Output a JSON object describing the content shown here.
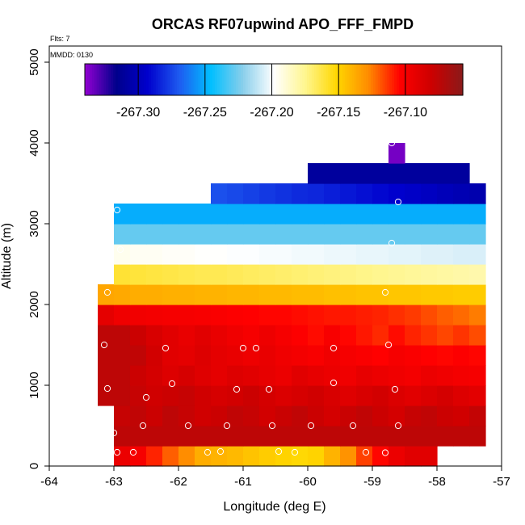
{
  "chart_data": {
    "type": "heatmap",
    "title": "ORCAS RF07upwind APO_FFF_FMPD",
    "flights_note": "Flts: 7",
    "date_note": "MMDD: 0130",
    "xlabel": "Longitude (deg E)",
    "ylabel": "Altitude (m)",
    "xlim": [
      -64,
      -57
    ],
    "ylim": [
      0,
      5200
    ],
    "xticks": [
      -64,
      -63,
      -62,
      -61,
      -60,
      -59,
      -58,
      -57
    ],
    "yticks": [
      0,
      1000,
      2000,
      3000,
      4000,
      5000
    ],
    "grid": false,
    "colorbar": {
      "range": [
        -267.34,
        -267.057
      ],
      "ticks": [
        -267.3,
        -267.25,
        -267.2,
        -267.15,
        -267.1
      ],
      "tick_labels": [
        "-267.30",
        "-267.25",
        "-267.20",
        "-267.15",
        "-267.10"
      ],
      "colors": [
        "#9400d3",
        "#00008b",
        "#0000cd",
        "#1e5bf0",
        "#00bfff",
        "#87ceeb",
        "#ffffff",
        "#fff68f",
        "#ffd700",
        "#ff8c00",
        "#ff0000",
        "#cd0000",
        "#8b1a1a"
      ],
      "placement": "top"
    },
    "cell_width_deg": 0.25,
    "cell_height_m": 250,
    "rows": [
      {
        "alt": 125,
        "lon_start": -63.0,
        "values": [
          -267.095,
          -267.1,
          -267.11,
          -267.12,
          -267.128,
          -267.138,
          -267.14,
          -267.142,
          -267.145,
          -267.148,
          -267.15,
          -267.152,
          -267.15,
          -267.14,
          -267.13,
          -267.115,
          -267.105,
          -267.095,
          -267.09,
          -267.09
        ]
      },
      {
        "alt": 375,
        "lon_start": -63.0,
        "values": [
          -267.075,
          -267.075,
          -267.075,
          -267.075,
          -267.075,
          -267.075,
          -267.075,
          -267.075,
          -267.075,
          -267.075,
          -267.075,
          -267.075,
          -267.075,
          -267.075,
          -267.075,
          -267.075,
          -267.075,
          -267.075,
          -267.075,
          -267.075,
          -267.075,
          -267.075,
          -267.075
        ]
      },
      {
        "alt": 625,
        "lon_start": -63.0,
        "values": [
          -267.078,
          -267.076,
          -267.08,
          -267.075,
          -267.078,
          -267.082,
          -267.08,
          -267.076,
          -267.078,
          -267.083,
          -267.079,
          -267.076,
          -267.08,
          -267.084,
          -267.079,
          -267.076,
          -267.08,
          -267.084,
          -267.078,
          -267.076,
          -267.08,
          -267.082,
          -267.077
        ]
      },
      {
        "alt": 875,
        "lon_start": -63.25,
        "values": [
          -267.075,
          -267.075,
          -267.078,
          -267.082,
          -267.08,
          -267.078,
          -267.082,
          -267.085,
          -267.083,
          -267.08,
          -267.084,
          -267.087,
          -267.085,
          -267.082,
          -267.086,
          -267.089,
          -267.086,
          -267.083,
          -267.087,
          -267.09,
          -267.087,
          -267.084,
          -267.088,
          -267.091
        ]
      },
      {
        "alt": 1125,
        "lon_start": -63.25,
        "values": [
          -267.075,
          -267.075,
          -267.08,
          -267.084,
          -267.088,
          -267.085,
          -267.089,
          -267.092,
          -267.088,
          -267.09,
          -267.093,
          -267.095,
          -267.09,
          -267.093,
          -267.095,
          -267.097,
          -267.093,
          -267.095,
          -267.097,
          -267.099,
          -267.095,
          -267.097,
          -267.099,
          -267.1
        ]
      },
      {
        "alt": 1375,
        "lon_start": -63.25,
        "values": [
          -267.075,
          -267.075,
          -267.076,
          -267.083,
          -267.09,
          -267.092,
          -267.088,
          -267.092,
          -267.094,
          -267.096,
          -267.094,
          -267.097,
          -267.099,
          -267.101,
          -267.097,
          -267.1,
          -267.102,
          -267.104,
          -267.1,
          -267.102,
          -267.104,
          -267.105,
          -267.103,
          -267.105
        ]
      },
      {
        "alt": 1625,
        "lon_start": -63.25,
        "values": [
          -267.075,
          -267.075,
          -267.08,
          -267.086,
          -267.09,
          -267.094,
          -267.09,
          -267.094,
          -267.097,
          -267.1,
          -267.096,
          -267.1,
          -267.103,
          -267.106,
          -267.101,
          -267.105,
          -267.108,
          -267.111,
          -267.106,
          -267.11,
          -267.113,
          -267.116,
          -267.113,
          -267.117
        ]
      },
      {
        "alt": 1875,
        "lon_start": -63.25,
        "values": [
          -267.092,
          -267.097,
          -267.098,
          -267.099,
          -267.1,
          -267.1,
          -267.101,
          -267.102,
          -267.103,
          -267.104,
          -267.105,
          -267.105,
          -267.106,
          -267.107,
          -267.108,
          -267.108,
          -267.109,
          -267.11,
          -267.112,
          -267.114,
          -267.117,
          -267.12,
          -267.122,
          -267.125
        ]
      },
      {
        "alt": 2125,
        "lon_start": -63.25,
        "values": [
          -267.136,
          -267.137,
          -267.138,
          -267.138,
          -267.139,
          -267.139,
          -267.14,
          -267.14,
          -267.141,
          -267.141,
          -267.142,
          -267.142,
          -267.143,
          -267.143,
          -267.144,
          -267.144,
          -267.145,
          -267.145,
          -267.146,
          -267.146,
          -267.147,
          -267.147,
          -267.148,
          -267.148
        ]
      },
      {
        "alt": 2375,
        "lon_start": -63.0,
        "values": [
          -267.16,
          -267.161,
          -267.162,
          -267.163,
          -267.164,
          -267.165,
          -267.165,
          -267.166,
          -267.167,
          -267.168,
          -267.169,
          -267.17,
          -267.171,
          -267.172,
          -267.173,
          -267.174,
          -267.175,
          -267.176,
          -267.177,
          -267.178,
          -267.179,
          -267.18,
          -267.181
        ]
      },
      {
        "alt": 2625,
        "lon_start": -63.0,
        "values": [
          -267.195,
          -267.196,
          -267.196,
          -267.197,
          -267.197,
          -267.198,
          -267.198,
          -267.199,
          -267.199,
          -267.2,
          -267.2,
          -267.201,
          -267.201,
          -267.202,
          -267.202,
          -267.203,
          -267.203,
          -267.204,
          -267.204,
          -267.205,
          -267.205,
          -267.206,
          -267.206
        ]
      },
      {
        "alt": 2875,
        "lon_start": -63.0,
        "values": [
          -267.228,
          -267.228,
          -267.228,
          -267.228,
          -267.228,
          -267.228,
          -267.228,
          -267.228,
          -267.228,
          -267.228,
          -267.228,
          -267.228,
          -267.228,
          -267.228,
          -267.228,
          -267.228,
          -267.228,
          -267.228,
          -267.228,
          -267.228,
          -267.228,
          -267.228,
          -267.228
        ]
      },
      {
        "alt": 3125,
        "lon_start": -63.0,
        "values": [
          -267.25,
          -267.25,
          -267.25,
          -267.25,
          -267.25,
          -267.25,
          -267.25,
          -267.25,
          -267.25,
          -267.25,
          -267.25,
          -267.25,
          -267.25,
          -267.25,
          -267.25,
          -267.25,
          -267.25,
          -267.25,
          -267.25,
          -267.25,
          -267.25,
          -267.25,
          -267.25
        ]
      },
      {
        "alt": 3375,
        "lon_start": -61.5,
        "values": [
          -267.272,
          -267.274,
          -267.276,
          -267.278,
          -267.28,
          -267.282,
          -267.283,
          -267.285,
          -267.287,
          -267.289,
          -267.291,
          -267.293,
          -267.295,
          -267.297,
          -267.3,
          -267.302,
          -267.304
        ]
      },
      {
        "alt": 3625,
        "lon_start": -60.0,
        "values": [
          -267.31,
          -267.31,
          -267.31,
          -267.31,
          -267.31,
          -267.31,
          -267.31,
          -267.31,
          -267.31,
          -267.31
        ]
      },
      {
        "alt": 3875,
        "lon_start": -58.75,
        "values": [
          -267.335
        ]
      }
    ],
    "points": [
      {
        "lon": -62.95,
        "alt": 3170
      },
      {
        "lon": -58.6,
        "alt": 3270
      },
      {
        "lon": -58.7,
        "alt": 4000
      },
      {
        "lon": -58.7,
        "alt": 2760
      },
      {
        "lon": -62.9,
        "alt": 2680
      },
      {
        "lon": -63.1,
        "alt": 2150
      },
      {
        "lon": -58.8,
        "alt": 2150
      },
      {
        "lon": -63.15,
        "alt": 1500
      },
      {
        "lon": -62.2,
        "alt": 1460
      },
      {
        "lon": -61.0,
        "alt": 1460
      },
      {
        "lon": -60.8,
        "alt": 1460
      },
      {
        "lon": -59.6,
        "alt": 1460
      },
      {
        "lon": -58.75,
        "alt": 1500
      },
      {
        "lon": -63.1,
        "alt": 960
      },
      {
        "lon": -62.5,
        "alt": 850
      },
      {
        "lon": -62.1,
        "alt": 1020
      },
      {
        "lon": -61.1,
        "alt": 950
      },
      {
        "lon": -60.6,
        "alt": 950
      },
      {
        "lon": -59.6,
        "alt": 1030
      },
      {
        "lon": -58.65,
        "alt": 950
      },
      {
        "lon": -62.55,
        "alt": 500
      },
      {
        "lon": -61.85,
        "alt": 500
      },
      {
        "lon": -61.25,
        "alt": 500
      },
      {
        "lon": -60.55,
        "alt": 500
      },
      {
        "lon": -59.95,
        "alt": 500
      },
      {
        "lon": -59.3,
        "alt": 500
      },
      {
        "lon": -58.6,
        "alt": 500
      },
      {
        "lon": -63.0,
        "alt": 410
      },
      {
        "lon": -62.95,
        "alt": 170
      },
      {
        "lon": -62.7,
        "alt": 170
      },
      {
        "lon": -61.55,
        "alt": 170
      },
      {
        "lon": -61.35,
        "alt": 180
      },
      {
        "lon": -60.45,
        "alt": 180
      },
      {
        "lon": -60.2,
        "alt": 170
      },
      {
        "lon": -59.1,
        "alt": 170
      },
      {
        "lon": -58.8,
        "alt": 165
      }
    ]
  }
}
